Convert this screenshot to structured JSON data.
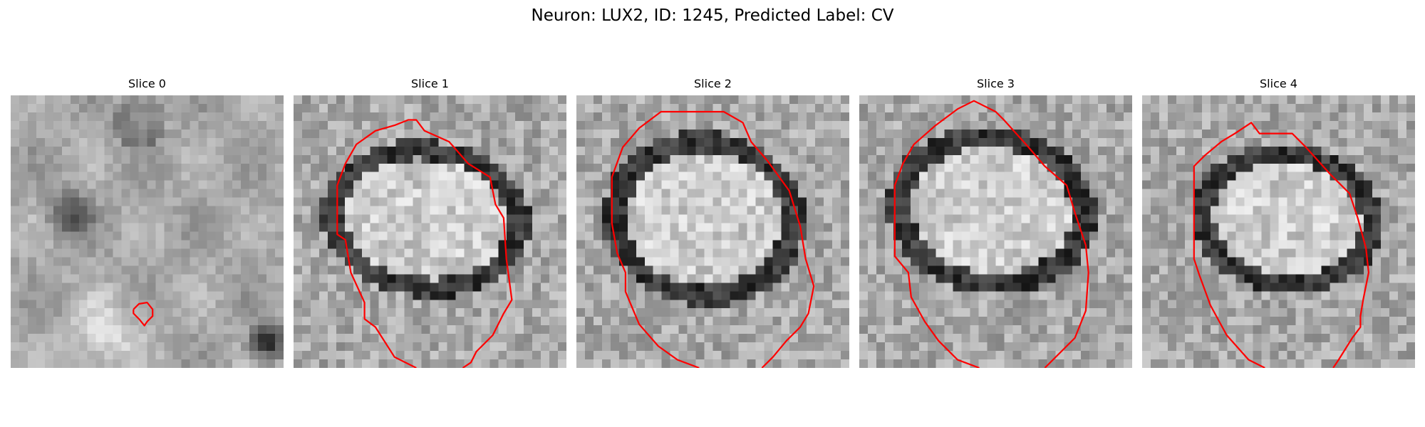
{
  "figure": {
    "title": "Neuron: LUX2, ID: 1245, Predicted Label: CV"
  },
  "panels": [
    {
      "title": "Slice 0"
    },
    {
      "title": "Slice 1"
    },
    {
      "title": "Slice 2"
    },
    {
      "title": "Slice 3"
    },
    {
      "title": "Slice 4"
    }
  ],
  "colors": {
    "contour": "#ff0000",
    "background": "#ffffff",
    "colormap": "grayscale"
  }
}
